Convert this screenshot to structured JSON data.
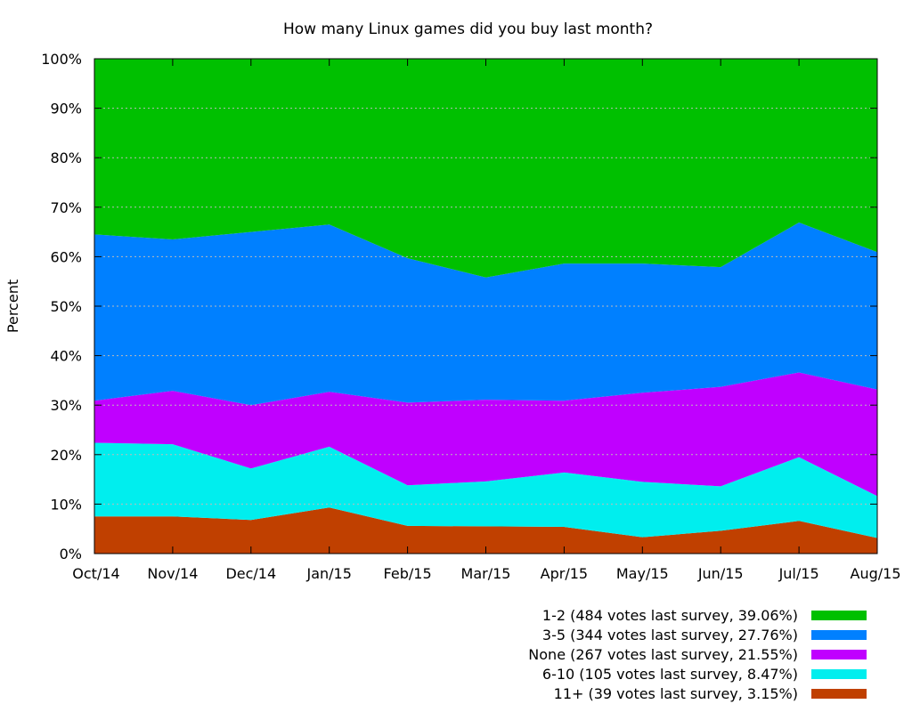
{
  "chart_data": {
    "type": "area",
    "stacked": true,
    "title": "How many Linux games did you buy last month?",
    "xlabel": "",
    "ylabel": "Percent",
    "ylim": [
      0,
      100
    ],
    "yticks": [
      "0%",
      "10%",
      "20%",
      "30%",
      "40%",
      "50%",
      "60%",
      "70%",
      "80%",
      "90%",
      "100%"
    ],
    "categories": [
      "Oct/14",
      "Nov/14",
      "Dec/14",
      "Jan/15",
      "Feb/15",
      "Mar/15",
      "Apr/15",
      "May/15",
      "Jun/15",
      "Jul/15",
      "Aug/15"
    ],
    "grid": true,
    "legend_position": "bottom-right",
    "series": [
      {
        "name": "11+ (39 votes last survey, 3.15%)",
        "color": "#c04000",
        "values": [
          7.5,
          7.5,
          6.8,
          9.3,
          5.6,
          5.5,
          5.4,
          3.3,
          4.6,
          6.6,
          3.15
        ]
      },
      {
        "name": "6-10 (105 votes last survey, 8.47%)",
        "color": "#00eeee",
        "values": [
          14.9,
          14.6,
          10.4,
          12.3,
          8.2,
          9.1,
          11.0,
          11.2,
          9.0,
          12.9,
          8.47
        ]
      },
      {
        "name": "None (267 votes last survey, 21.55%)",
        "color": "#c000ff",
        "values": [
          8.5,
          10.8,
          12.8,
          11.1,
          16.7,
          16.5,
          14.5,
          18.0,
          20.1,
          17.1,
          21.55
        ]
      },
      {
        "name": "3-5 (344 votes last survey, 27.76%)",
        "color": "#0080ff",
        "values": [
          33.6,
          30.6,
          35.0,
          33.8,
          29.2,
          24.7,
          27.7,
          26.1,
          24.2,
          30.3,
          27.76
        ]
      },
      {
        "name": "1-2 (484 votes last survey, 39.06%)",
        "color": "#00c000",
        "values": [
          35.5,
          36.5,
          35.0,
          33.5,
          40.3,
          44.2,
          41.4,
          41.4,
          42.1,
          33.1,
          39.06
        ]
      }
    ]
  }
}
